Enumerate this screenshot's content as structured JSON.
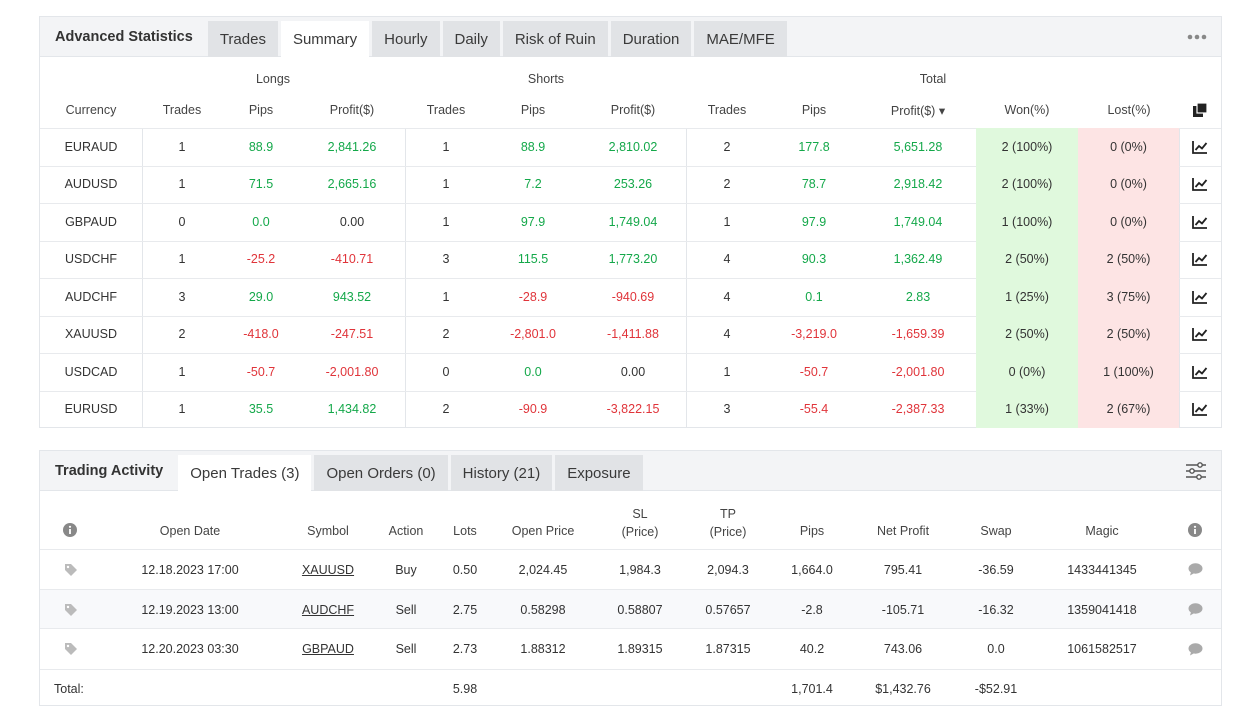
{
  "stats": {
    "title": "Advanced Statistics",
    "tabs": [
      "Trades",
      "Summary",
      "Hourly",
      "Daily",
      "Risk of Ruin",
      "Duration",
      "MAE/MFE"
    ],
    "active_tab": "Summary",
    "group_headers": {
      "longs": "Longs",
      "shorts": "Shorts",
      "total": "Total"
    },
    "columns": {
      "currency": "Currency",
      "trades": "Trades",
      "pips": "Pips",
      "profit": "Profit($)",
      "total_profit": "Profit($) ▾",
      "won": "Won(%)",
      "lost": "Lost(%)"
    },
    "rows": [
      {
        "currency": "EURAUD",
        "l_trades": "1",
        "l_pips": "88.9",
        "l_profit": "2,841.26",
        "s_trades": "1",
        "s_pips": "88.9",
        "s_profit": "2,810.02",
        "t_trades": "2",
        "t_pips": "177.8",
        "t_profit": "5,651.28",
        "won": "2 (100%)",
        "lost": "0 (0%)"
      },
      {
        "currency": "AUDUSD",
        "l_trades": "1",
        "l_pips": "71.5",
        "l_profit": "2,665.16",
        "s_trades": "1",
        "s_pips": "7.2",
        "s_profit": "253.26",
        "t_trades": "2",
        "t_pips": "78.7",
        "t_profit": "2,918.42",
        "won": "2 (100%)",
        "lost": "0 (0%)"
      },
      {
        "currency": "GBPAUD",
        "l_trades": "0",
        "l_pips": "0.0",
        "l_profit": "0.00",
        "s_trades": "1",
        "s_pips": "97.9",
        "s_profit": "1,749.04",
        "t_trades": "1",
        "t_pips": "97.9",
        "t_profit": "1,749.04",
        "won": "1 (100%)",
        "lost": "0 (0%)"
      },
      {
        "currency": "USDCHF",
        "l_trades": "1",
        "l_pips": "-25.2",
        "l_profit": "-410.71",
        "s_trades": "3",
        "s_pips": "115.5",
        "s_profit": "1,773.20",
        "t_trades": "4",
        "t_pips": "90.3",
        "t_profit": "1,362.49",
        "won": "2 (50%)",
        "lost": "2 (50%)"
      },
      {
        "currency": "AUDCHF",
        "l_trades": "3",
        "l_pips": "29.0",
        "l_profit": "943.52",
        "s_trades": "1",
        "s_pips": "-28.9",
        "s_profit": "-940.69",
        "t_trades": "4",
        "t_pips": "0.1",
        "t_profit": "2.83",
        "won": "1 (25%)",
        "lost": "3 (75%)"
      },
      {
        "currency": "XAUUSD",
        "l_trades": "2",
        "l_pips": "-418.0",
        "l_profit": "-247.51",
        "s_trades": "2",
        "s_pips": "-2,801.0",
        "s_profit": "-1,411.88",
        "t_trades": "4",
        "t_pips": "-3,219.0",
        "t_profit": "-1,659.39",
        "won": "2 (50%)",
        "lost": "2 (50%)"
      },
      {
        "currency": "USDCAD",
        "l_trades": "1",
        "l_pips": "-50.7",
        "l_profit": "-2,001.80",
        "s_trades": "0",
        "s_pips": "0.0",
        "s_profit": "0.00",
        "t_trades": "1",
        "t_pips": "-50.7",
        "t_profit": "-2,001.80",
        "won": "0 (0%)",
        "lost": "1 (100%)"
      },
      {
        "currency": "EURUSD",
        "l_trades": "1",
        "l_pips": "35.5",
        "l_profit": "1,434.82",
        "s_trades": "2",
        "s_pips": "-90.9",
        "s_profit": "-3,822.15",
        "t_trades": "3",
        "t_pips": "-55.4",
        "t_profit": "-2,387.33",
        "won": "1 (33%)",
        "lost": "2 (67%)"
      }
    ]
  },
  "activity": {
    "title": "Trading Activity",
    "tabs": [
      "Open Trades (3)",
      "Open Orders (0)",
      "History (21)",
      "Exposure"
    ],
    "active_tab": "Open Trades (3)",
    "columns": {
      "open_date": "Open Date",
      "symbol": "Symbol",
      "action": "Action",
      "lots": "Lots",
      "open_price": "Open Price",
      "sl_1": "SL",
      "sl_2": "(Price)",
      "tp_1": "TP",
      "tp_2": "(Price)",
      "pips": "Pips",
      "net_profit": "Net Profit",
      "swap": "Swap",
      "magic": "Magic"
    },
    "rows": [
      {
        "open_date": "12.18.2023 17:00",
        "symbol": "XAUUSD",
        "action": "Buy",
        "lots": "0.50",
        "open_price": "2,024.45",
        "sl": "1,984.3",
        "tp": "2,094.3",
        "pips": "1,664.0",
        "net_profit": "795.41",
        "swap": "-36.59",
        "magic": "1433441345"
      },
      {
        "open_date": "12.19.2023 13:00",
        "symbol": "AUDCHF",
        "action": "Sell",
        "lots": "2.75",
        "open_price": "0.58298",
        "sl": "0.58807",
        "tp": "0.57657",
        "pips": "-2.8",
        "net_profit": "-105.71",
        "swap": "-16.32",
        "magic": "1359041418"
      },
      {
        "open_date": "12.20.2023 03:30",
        "symbol": "GBPAUD",
        "action": "Sell",
        "lots": "2.73",
        "open_price": "1.88312",
        "sl": "1.89315",
        "tp": "1.87315",
        "pips": "40.2",
        "net_profit": "743.06",
        "swap": "0.0",
        "magic": "1061582517"
      }
    ],
    "total": {
      "label": "Total:",
      "lots": "5.98",
      "pips": "1,701.4",
      "net_profit": "$1,432.76",
      "swap": "-$52.91"
    }
  },
  "colors": {
    "positive": "#14a84a",
    "negative": "#e0343a",
    "won_bg": "#e0f9dd",
    "lost_bg": "#fde4e4"
  },
  "icons": [
    "more-icon",
    "copy-icon",
    "chart-icon",
    "info-icon",
    "tag-icon",
    "comment-icon",
    "filter-icon"
  ]
}
